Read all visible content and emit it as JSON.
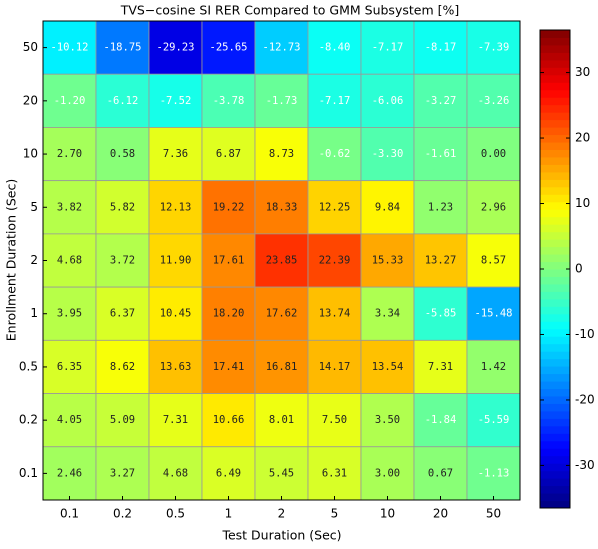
{
  "chart_data": {
    "type": "heatmap",
    "title": "TVS−cosine SI RER Compared to GMM Subsystem [%]",
    "xlabel": "Test Duration (Sec)",
    "ylabel": "Enrollment Duration (Sec)",
    "x_categories": [
      "0.1",
      "0.2",
      "0.5",
      "1",
      "2",
      "5",
      "10",
      "20",
      "50"
    ],
    "y_categories": [
      "50",
      "20",
      "10",
      "5",
      "2",
      "1",
      "0.5",
      "0.2",
      "0.1"
    ],
    "values": [
      [
        -10.12,
        -18.75,
        -29.23,
        -25.65,
        -12.73,
        -8.4,
        -7.17,
        -8.17,
        -7.39
      ],
      [
        -1.2,
        -6.12,
        -7.52,
        -3.78,
        -1.73,
        -7.17,
        -6.06,
        -3.27,
        -3.26
      ],
      [
        2.7,
        0.58,
        7.36,
        6.87,
        8.73,
        -0.62,
        -3.3,
        -1.61,
        0
      ],
      [
        3.82,
        5.82,
        12.13,
        19.22,
        18.33,
        12.25,
        9.84,
        1.23,
        2.96
      ],
      [
        4.68,
        3.72,
        11.9,
        17.61,
        23.85,
        22.39,
        15.33,
        13.27,
        8.57
      ],
      [
        3.95,
        6.37,
        10.45,
        18.2,
        17.62,
        13.74,
        3.34,
        -5.85,
        -15.48
      ],
      [
        6.35,
        8.62,
        13.63,
        17.41,
        16.81,
        14.17,
        13.54,
        7.31,
        1.42
      ],
      [
        4.05,
        5.09,
        7.31,
        10.66,
        8.01,
        7.5,
        3.5,
        -1.84,
        -5.59
      ],
      [
        2.46,
        3.27,
        4.68,
        6.49,
        5.45,
        6.31,
        3,
        0.67,
        -1.13
      ]
    ],
    "value_labels": [
      [
        "-10.12",
        "-18.75",
        "-29.23",
        "-25.65",
        "-12.73",
        "-8.40",
        "-7.17",
        "-8.17",
        "-7.39"
      ],
      [
        "-1.20",
        "-6.12",
        "-7.52",
        "-3.78",
        "-1.73",
        "-7.17",
        "-6.06",
        "-3.27",
        "-3.26"
      ],
      [
        "2.70",
        "0.58",
        "7.36",
        "6.87",
        "8.73",
        "-0.62",
        "-3.30",
        "-1.61",
        "0.00"
      ],
      [
        "3.82",
        "5.82",
        "12.13",
        "19.22",
        "18.33",
        "12.25",
        "9.84",
        "1.23",
        "2.96"
      ],
      [
        "4.68",
        "3.72",
        "11.90",
        "17.61",
        "23.85",
        "22.39",
        "15.33",
        "13.27",
        "8.57"
      ],
      [
        "3.95",
        "6.37",
        "10.45",
        "18.20",
        "17.62",
        "13.74",
        "3.34",
        "-5.85",
        "-15.48"
      ],
      [
        "6.35",
        "8.62",
        "13.63",
        "17.41",
        "16.81",
        "14.17",
        "13.54",
        "7.31",
        "1.42"
      ],
      [
        "4.05",
        "5.09",
        "7.31",
        "10.66",
        "8.01",
        "7.50",
        "3.50",
        "-1.84",
        "-5.59"
      ],
      [
        "2.46",
        "3.27",
        "4.68",
        "6.49",
        "5.45",
        "6.31",
        "3.00",
        "0.67",
        "-1.13"
      ]
    ],
    "clim": [
      -36.5,
      36.5
    ],
    "cticks": [
      -30,
      -20,
      -10,
      0,
      10,
      20,
      30
    ],
    "colormap": "jet"
  }
}
